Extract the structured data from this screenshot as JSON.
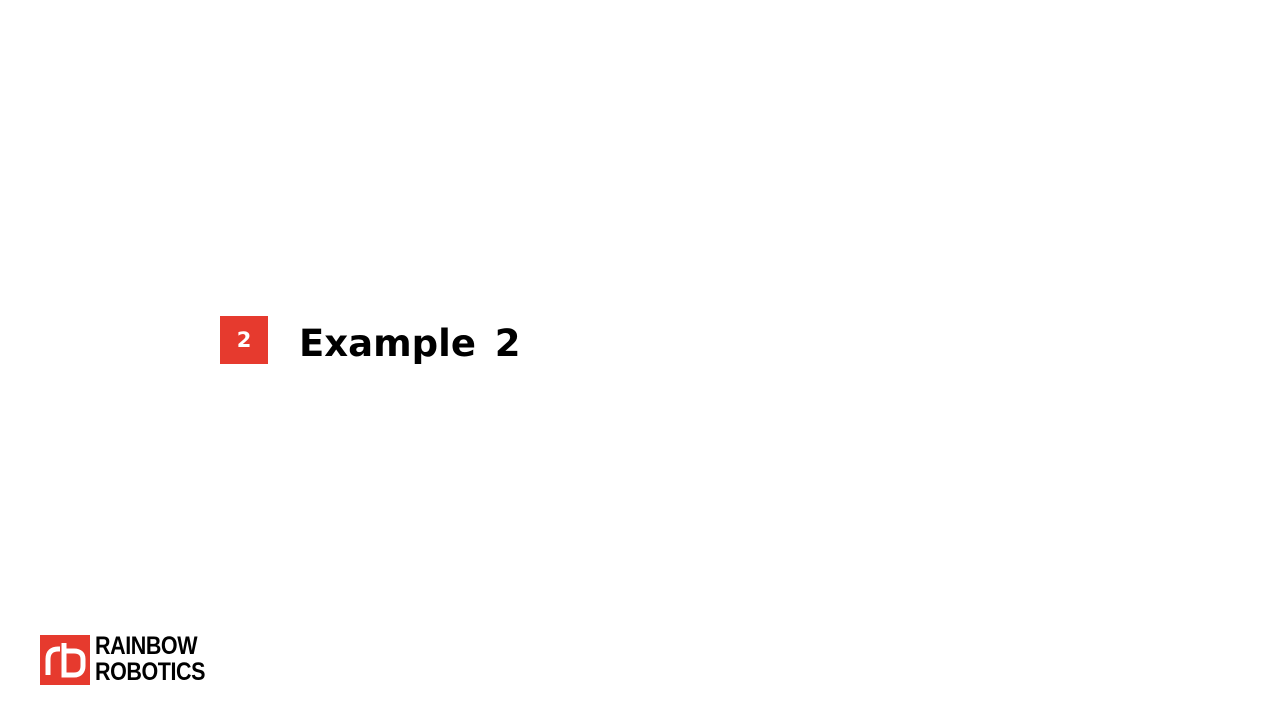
{
  "slide": {
    "section_number": "2",
    "section_title": "Example 2",
    "accent_color": "#e63a2e"
  },
  "logo": {
    "icon": "rb-logo-icon",
    "line1": "RAINBOW",
    "line2": "ROBOTICS"
  }
}
